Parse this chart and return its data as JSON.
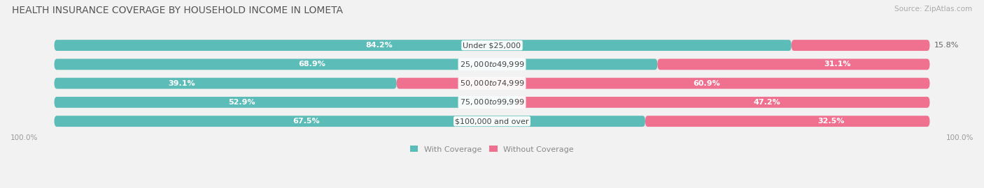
{
  "title": "HEALTH INSURANCE COVERAGE BY HOUSEHOLD INCOME IN LOMETA",
  "source": "Source: ZipAtlas.com",
  "categories": [
    "Under $25,000",
    "$25,000 to $49,999",
    "$50,000 to $74,999",
    "$75,000 to $99,999",
    "$100,000 and over"
  ],
  "with_coverage": [
    84.2,
    68.9,
    39.1,
    52.9,
    67.5
  ],
  "without_coverage": [
    15.8,
    31.1,
    60.9,
    47.2,
    32.5
  ],
  "color_with": "#5bbcb8",
  "color_without": "#f07090",
  "color_bg_bar": "#e8e8e8",
  "bg_color": "#f2f2f2",
  "title_fontsize": 10,
  "label_fontsize": 8,
  "value_fontsize": 8,
  "tick_fontsize": 7.5,
  "legend_fontsize": 8,
  "source_fontsize": 7.5
}
